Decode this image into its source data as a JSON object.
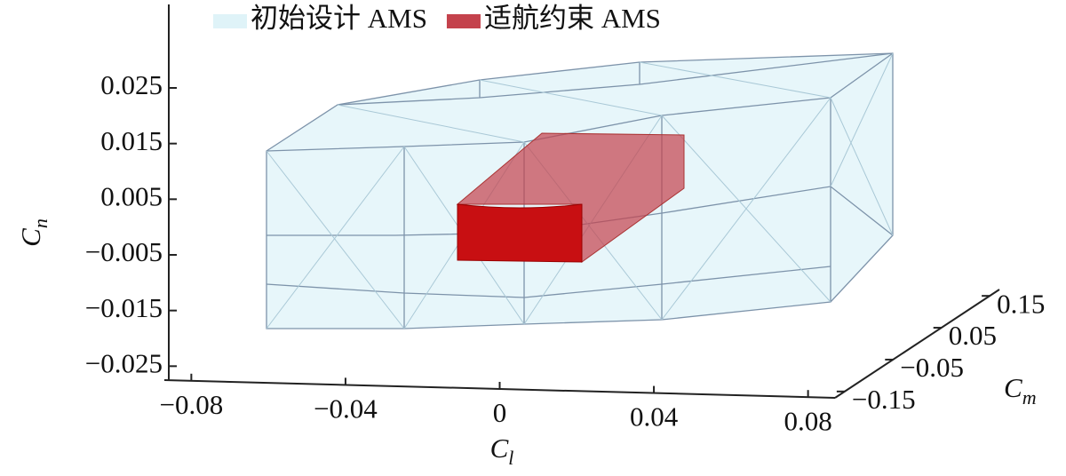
{
  "chart_data": {
    "type": "3d",
    "xlabel": "Cl",
    "ylabel": "Cn",
    "zlabel": "Cm",
    "series": [
      {
        "name": "初始设计 AMS",
        "color": "#dff3f8"
      },
      {
        "name": "适航约束 AMS",
        "color": "#c4424c"
      }
    ],
    "xlim": [
      -0.087,
      0.087
    ],
    "xticks": [
      {
        "value": -0.08,
        "label": "−0.08"
      },
      {
        "value": -0.04,
        "label": "−0.04"
      },
      0,
      0.04,
      0.08
    ],
    "ylim": [
      -0.0275,
      0.04
    ],
    "yticks": [
      {
        "value": -0.025,
        "label": "−0.025"
      },
      {
        "value": -0.015,
        "label": "−0.015"
      },
      {
        "value": -0.005,
        "label": "−0.005"
      },
      0.005,
      0.015,
      0.025
    ],
    "zlim": [
      -0.17,
      0.17
    ],
    "zticks": [
      {
        "value": -0.15,
        "label": "−0.15"
      },
      {
        "value": -0.05,
        "label": "−0.05"
      },
      0.05,
      0.15
    ]
  }
}
